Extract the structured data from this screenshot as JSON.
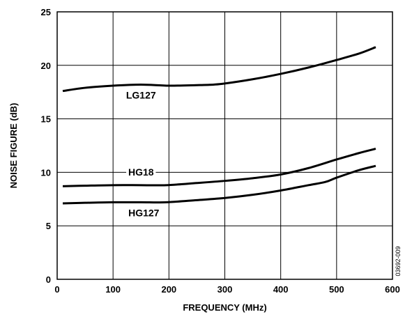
{
  "chart_data": {
    "type": "line",
    "xlabel": "FREQUENCY (MHz)",
    "ylabel": "NOISE FIGURE (dB)",
    "xlim": [
      0,
      600
    ],
    "ylim": [
      0,
      25
    ],
    "xticks": [
      0,
      100,
      200,
      300,
      400,
      500,
      600
    ],
    "yticks": [
      0,
      5,
      10,
      15,
      20,
      25
    ],
    "grid": true,
    "figure_id": "03692-009",
    "series": [
      {
        "name": "LG127",
        "x": [
          10,
          50,
          100,
          150,
          200,
          250,
          280,
          300,
          350,
          400,
          450,
          500,
          540,
          570
        ],
        "y": [
          17.6,
          17.9,
          18.1,
          18.2,
          18.1,
          18.15,
          18.2,
          18.3,
          18.7,
          19.2,
          19.8,
          20.5,
          21.1,
          21.7
        ]
      },
      {
        "name": "HG18",
        "x": [
          10,
          50,
          100,
          150,
          195,
          250,
          300,
          350,
          400,
          450,
          500,
          540,
          570
        ],
        "y": [
          8.7,
          8.75,
          8.8,
          8.8,
          8.8,
          9.0,
          9.2,
          9.45,
          9.8,
          10.4,
          11.2,
          11.8,
          12.2
        ]
      },
      {
        "name": "HG127",
        "x": [
          10,
          50,
          100,
          150,
          195,
          250,
          300,
          350,
          400,
          450,
          480,
          500,
          540,
          570
        ],
        "y": [
          7.1,
          7.15,
          7.2,
          7.2,
          7.2,
          7.4,
          7.6,
          7.9,
          8.3,
          8.8,
          9.1,
          9.5,
          10.2,
          10.6
        ]
      }
    ],
    "labels": [
      {
        "series": "LG127",
        "text": "LG127",
        "x": 150,
        "y": 16.9
      },
      {
        "series": "HG18",
        "text": "HG18",
        "x": 150,
        "y": 9.7
      },
      {
        "series": "HG127",
        "text": "HG127",
        "x": 155,
        "y": 5.9
      }
    ]
  }
}
